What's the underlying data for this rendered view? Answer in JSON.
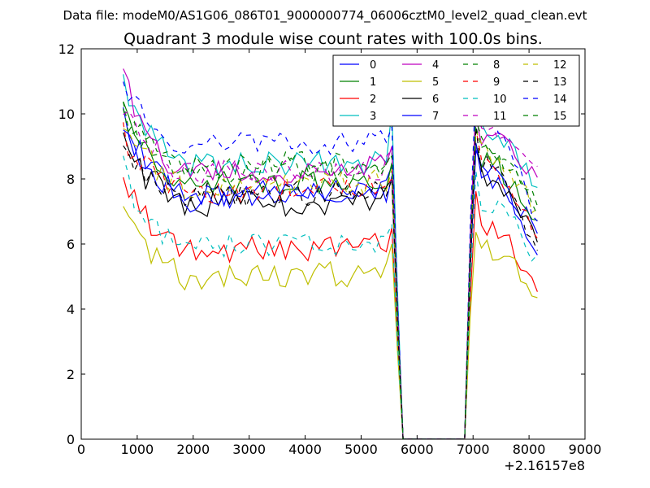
{
  "suptitle": "Data file: modeM0/AS1G06_086T01_9000000774_06006cztM0_level2_quad_clean.evt",
  "offset_label": "+2.16157e8",
  "chart_data": {
    "type": "line",
    "title": "Quadrant 3 module wise count rates with 100.0s bins.",
    "xlabel": "",
    "ylabel": "",
    "xlim": [
      0,
      9000
    ],
    "ylim": [
      0,
      12
    ],
    "xticks": [
      0,
      1000,
      2000,
      3000,
      4000,
      5000,
      6000,
      7000,
      8000,
      9000
    ],
    "yticks": [
      0,
      2,
      4,
      6,
      8,
      10,
      12
    ],
    "x_start": 750,
    "x_end": 8150,
    "gap_start": 5750,
    "gap_end": 6850,
    "bin": 100,
    "legend_position": "top-right",
    "series": [
      {
        "name": "0",
        "color": "#0000ff",
        "dash": "solid",
        "start": 9.8,
        "plateau": 7.3,
        "spike": 8.4,
        "post": 8.2,
        "end": 6.2,
        "seed": 1
      },
      {
        "name": "1",
        "color": "#008000",
        "dash": "solid",
        "start": 10.6,
        "plateau": 7.7,
        "spike": 8.5,
        "post": 8.6,
        "end": 6.6,
        "seed": 2
      },
      {
        "name": "2",
        "color": "#ff0000",
        "dash": "solid",
        "start": 8.2,
        "plateau": 5.6,
        "spike": 6.5,
        "post": 6.6,
        "end": 4.4,
        "seed": 3
      },
      {
        "name": "3",
        "color": "#00bfbf",
        "dash": "solid",
        "start": 11.3,
        "plateau": 8.2,
        "spike": 10.1,
        "post": 9.5,
        "end": 7.6,
        "seed": 4
      },
      {
        "name": "4",
        "color": "#bf00bf",
        "dash": "solid",
        "start": 11.4,
        "plateau": 8.0,
        "spike": 9.0,
        "post": 9.3,
        "end": 7.9,
        "seed": 5
      },
      {
        "name": "5",
        "color": "#bfbf00",
        "dash": "solid",
        "start": 7.1,
        "plateau": 4.8,
        "spike": 6.0,
        "post": 5.9,
        "end": 4.2,
        "seed": 6
      },
      {
        "name": "6",
        "color": "#000000",
        "dash": "solid",
        "start": 9.3,
        "plateau": 7.0,
        "spike": 8.0,
        "post": 8.1,
        "end": 5.9,
        "seed": 7
      },
      {
        "name": "7",
        "color": "#0000ff",
        "dash": "solid",
        "start": 10.0,
        "plateau": 7.2,
        "spike": 8.1,
        "post": 8.3,
        "end": 5.5,
        "seed": 8
      },
      {
        "name": "8",
        "color": "#008000",
        "dash": "dashed",
        "start": 10.1,
        "plateau": 8.2,
        "spike": 8.8,
        "post": 9.0,
        "end": 7.0,
        "seed": 9
      },
      {
        "name": "9",
        "color": "#ff0000",
        "dash": "dashed",
        "start": 9.4,
        "plateau": 7.4,
        "spike": 8.0,
        "post": 8.4,
        "end": 6.0,
        "seed": 10
      },
      {
        "name": "10",
        "color": "#00bfbf",
        "dash": "dashed",
        "start": 8.3,
        "plateau": 5.7,
        "spike": 6.6,
        "post": 7.3,
        "end": 5.5,
        "seed": 11
      },
      {
        "name": "11",
        "color": "#bf00bf",
        "dash": "dashed",
        "start": 10.4,
        "plateau": 8.0,
        "spike": 8.9,
        "post": 9.6,
        "end": 8.2,
        "seed": 12
      },
      {
        "name": "12",
        "color": "#bfbf00",
        "dash": "dashed",
        "start": 9.9,
        "plateau": 7.6,
        "spike": 8.3,
        "post": 8.9,
        "end": 6.9,
        "seed": 13
      },
      {
        "name": "13",
        "color": "#000000",
        "dash": "dashed",
        "start": 9.3,
        "plateau": 7.3,
        "spike": 8.0,
        "post": 8.5,
        "end": 5.6,
        "seed": 14
      },
      {
        "name": "14",
        "color": "#0000ff",
        "dash": "dashed",
        "start": 11.2,
        "plateau": 8.8,
        "spike": 9.6,
        "post": 10.1,
        "end": 6.5,
        "seed": 15
      },
      {
        "name": "15",
        "color": "#008000",
        "dash": "dashed",
        "start": 10.3,
        "plateau": 8.0,
        "spike": 8.7,
        "post": 9.1,
        "end": 6.7,
        "seed": 16
      }
    ]
  }
}
